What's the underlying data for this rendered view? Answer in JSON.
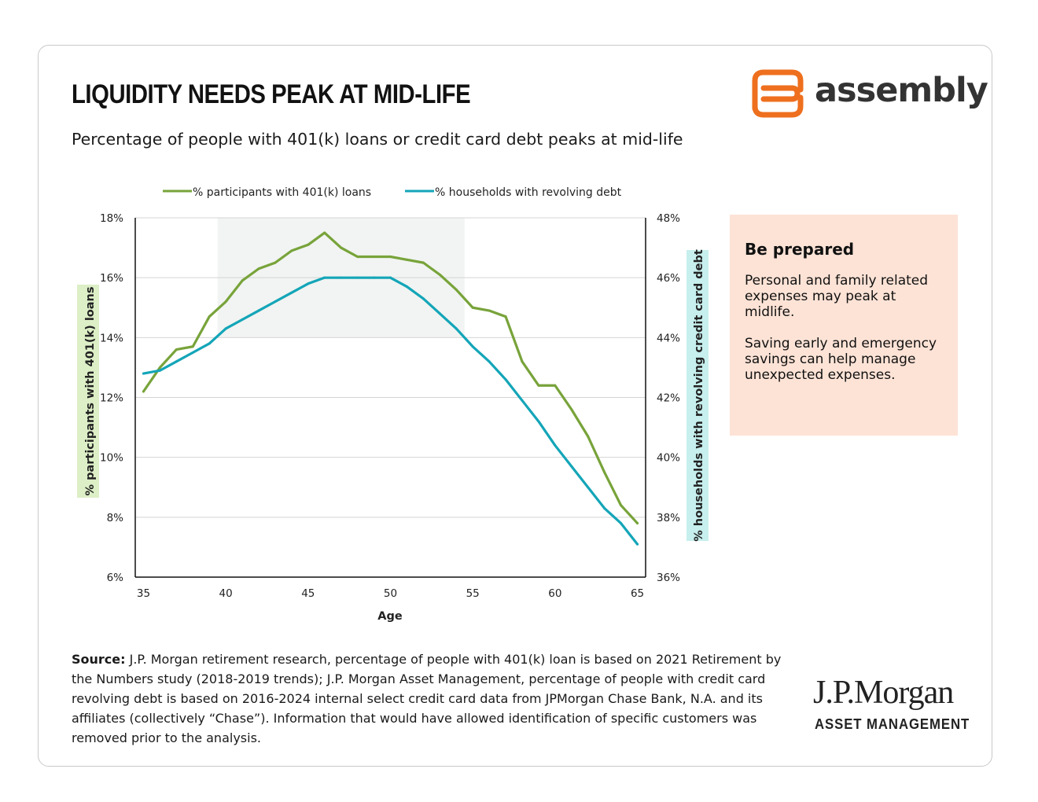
{
  "header": {
    "title": "LIQUIDITY NEEDS PEAK AT MID-LIFE",
    "subtitle": "Percentage of people with 401(k) loans or credit card debt peaks at mid-life",
    "brand_name": "assembly",
    "brand_icon": "assembly-logo-icon"
  },
  "colors": {
    "green": "#78a33a",
    "teal": "#14a5b8",
    "shade": "#f1f4f2",
    "grid": "#d4d4d4",
    "axis": "#111111",
    "left_label_bg": "#dcefc6",
    "right_label_bg": "#c6efed",
    "brand_orange": "#ee6f1e",
    "info_bg": "#fde3d6"
  },
  "chart_data": {
    "type": "line",
    "x": [
      35,
      36,
      37,
      38,
      39,
      40,
      41,
      42,
      43,
      44,
      45,
      46,
      47,
      48,
      49,
      50,
      51,
      52,
      53,
      54,
      55,
      56,
      57,
      58,
      59,
      60,
      61,
      62,
      63,
      64,
      65
    ],
    "xlabel": "Age",
    "xlim": [
      34.5,
      65.5
    ],
    "xticks": [
      35,
      40,
      45,
      50,
      55,
      60,
      65
    ],
    "xtick_labels": [
      "35",
      "40",
      "45",
      "50",
      "55",
      "60",
      "65"
    ],
    "ylabel_left": "% participants with 401(k) loans",
    "ylabel_right": "% households with revolving credit card debt",
    "ylim_left": [
      6,
      18
    ],
    "ylim_right": [
      36,
      48
    ],
    "yticks_left": [
      6,
      8,
      10,
      12,
      14,
      16,
      18
    ],
    "ytick_labels_left": [
      "6%",
      "8%",
      "10%",
      "12%",
      "14%",
      "16%",
      "18%"
    ],
    "yticks_right": [
      36,
      38,
      40,
      42,
      44,
      46,
      48
    ],
    "ytick_labels_right": [
      "36%",
      "38%",
      "40%",
      "42%",
      "44%",
      "46%",
      "48%"
    ],
    "highlight_band": {
      "x_range": [
        39.5,
        54.5
      ],
      "y_range_left": [
        14,
        18
      ]
    },
    "grid": true,
    "legend_position": "top",
    "series": [
      {
        "name": "% participants with 401(k) loans",
        "axis": "left",
        "values": [
          12.2,
          13.0,
          13.6,
          13.7,
          14.7,
          15.2,
          15.9,
          16.3,
          16.5,
          16.9,
          17.1,
          17.5,
          17.0,
          16.7,
          16.7,
          16.7,
          16.6,
          16.5,
          16.1,
          15.6,
          15.0,
          14.9,
          14.7,
          13.2,
          12.4,
          12.4,
          11.6,
          10.7,
          9.5,
          8.4,
          7.8
        ]
      },
      {
        "name": "% households with revolving debt",
        "axis": "right",
        "values": [
          42.8,
          42.9,
          43.2,
          43.5,
          43.8,
          44.3,
          44.6,
          44.9,
          45.2,
          45.5,
          45.8,
          46.0,
          46.0,
          46.0,
          46.0,
          46.0,
          45.7,
          45.3,
          44.8,
          44.3,
          43.7,
          43.2,
          42.6,
          41.9,
          41.2,
          40.4,
          39.7,
          39.0,
          38.3,
          37.8,
          37.1
        ]
      }
    ]
  },
  "info_box": {
    "title": "Be prepared",
    "paragraph_1": "Personal and family related expenses may peak at midlife.",
    "paragraph_2": "Saving early and emergency savings can help manage unexpected expenses."
  },
  "source": {
    "label": "Source:",
    "text": " J.P. Morgan retirement research, percentage of people with 401(k) loan is based on 2021 Retirement by the Numbers study (2018-2019 trends); J.P. Morgan Asset Management, percentage of people with credit card revolving debt is based on 2016-2024 internal select credit card data from JPMorgan Chase Bank, N.A. and its affiliates (collectively “Chase”). Information that would have allowed identification of specific customers was removed prior to the analysis."
  },
  "footer_brand": {
    "name": "J.P.Morgan",
    "sub": "ASSET MANAGEMENT"
  }
}
